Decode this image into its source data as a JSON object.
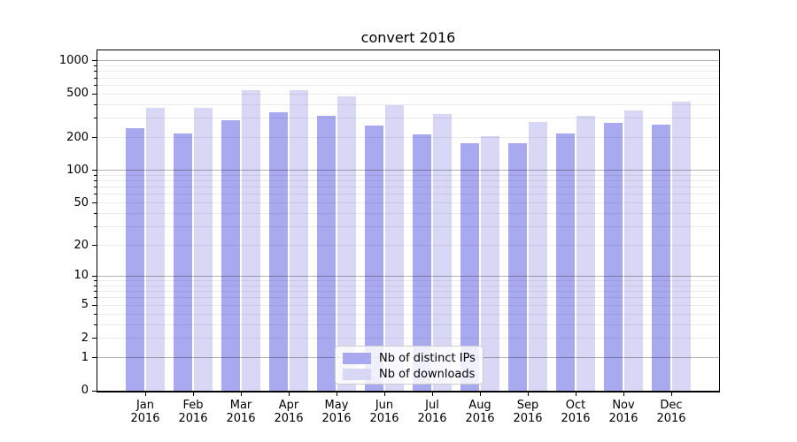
{
  "chart_data": {
    "type": "bar",
    "title": "convert 2016",
    "categories": [
      "Jan",
      "Feb",
      "Mar",
      "Apr",
      "May",
      "Jun",
      "Jul",
      "Aug",
      "Sep",
      "Oct",
      "Nov",
      "Dec"
    ],
    "year": "2016",
    "x_tick_labels": [
      "Jan 2016",
      "Feb 2016",
      "Mar 2016",
      "Apr 2016",
      "May 2016",
      "Jun 2016",
      "Jul 2016",
      "Aug 2016",
      "Sep 2016",
      "Oct 2016",
      "Nov 2016",
      "Dec 2016"
    ],
    "series": [
      {
        "name": "Nb of distinct IPs",
        "color": "#a9a9f0",
        "values": [
          243,
          218,
          285,
          338,
          317,
          258,
          212,
          177,
          176,
          218,
          272,
          263
        ]
      },
      {
        "name": "Nb of downloads",
        "color": "#d8d8f6",
        "values": [
          370,
          370,
          545,
          545,
          475,
          392,
          327,
          205,
          278,
          316,
          353,
          425
        ]
      }
    ],
    "yscale": "log10(value+1), 0 at baseline",
    "yticks": [
      0,
      1,
      2,
      5,
      10,
      20,
      50,
      100,
      200,
      500,
      1000
    ],
    "ylim": [
      0,
      1245
    ],
    "xlabel": "",
    "ylabel": "",
    "grid": "horizontal, major lines at 1/10/100/1000, faint minor lines at 2-9 per decade, drawn over bars",
    "legend_position": "inside axes, lower center"
  },
  "colors": {
    "distinct_ips": "#a9a9f0",
    "downloads": "#d8d8f6",
    "major_grid": "#b3b3b3",
    "minor_grid": "#ebebeb",
    "axis": "#000000",
    "background": "#ffffff"
  }
}
